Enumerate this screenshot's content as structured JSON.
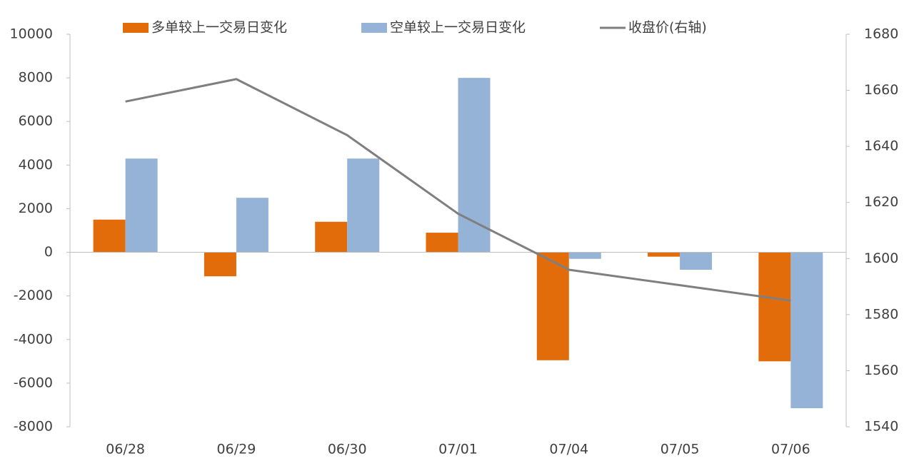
{
  "chart_data": {
    "type": "bar_line",
    "categories": [
      "06/28",
      "06/29",
      "06/30",
      "07/01",
      "07/04",
      "07/05",
      "07/06"
    ],
    "series": [
      {
        "name": "多单较上一交易日变化",
        "color": "#e36c0a",
        "type": "bar",
        "values": [
          1500,
          -1100,
          1400,
          900,
          -4950,
          -200,
          -5000
        ]
      },
      {
        "name": "空单较上一交易日变化",
        "color": "#95b3d7",
        "type": "bar",
        "values": [
          4300,
          2500,
          4300,
          8000,
          -300,
          -800,
          -7150
        ]
      },
      {
        "name": "收盘价(右轴)",
        "color": "#7f7f7f",
        "type": "line",
        "axis": "y2",
        "values": [
          1656,
          1664,
          1644,
          1616,
          1596,
          1590.5,
          1585
        ]
      }
    ],
    "ylim": [
      -8000,
      10000
    ],
    "yticks": [
      -8000,
      -6000,
      -4000,
      -2000,
      0,
      2000,
      4000,
      6000,
      8000,
      10000
    ],
    "y2lim": [
      1540,
      1680
    ],
    "y2ticks": [
      1540,
      1560,
      1580,
      1600,
      1620,
      1640,
      1660,
      1680
    ],
    "legend": "top"
  }
}
